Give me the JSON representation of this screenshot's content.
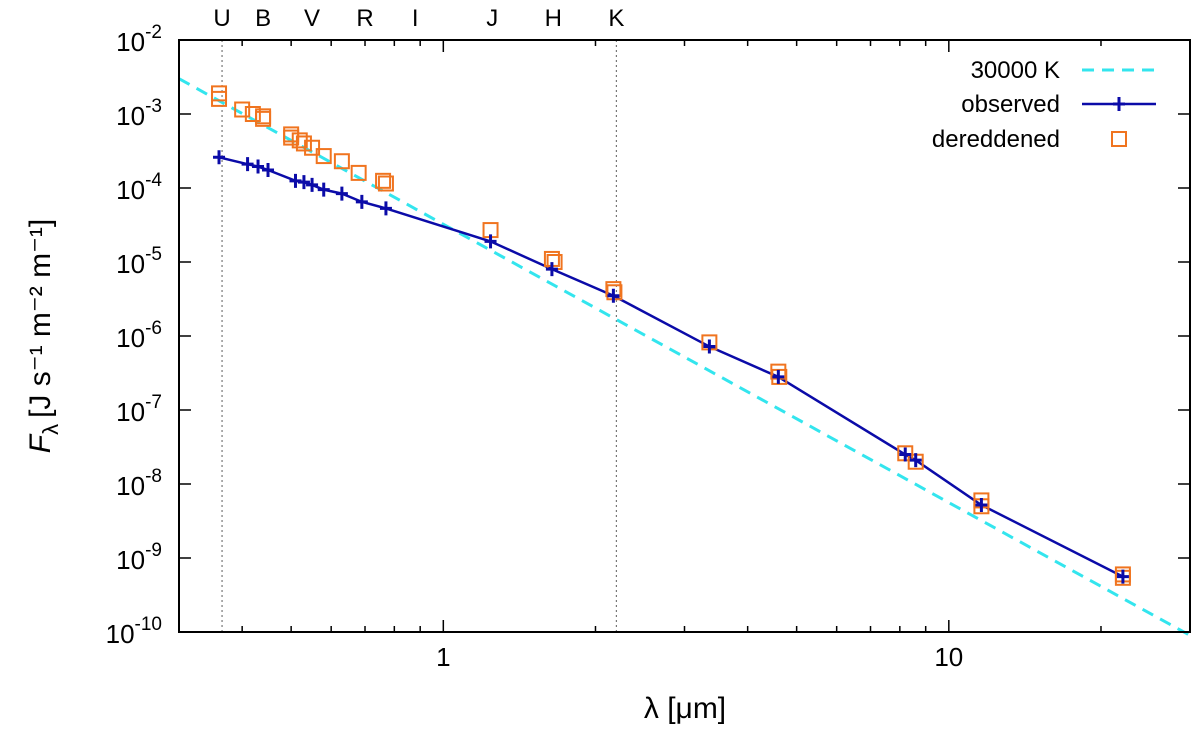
{
  "chart_data": {
    "type": "scatter",
    "xscale": "log",
    "yscale": "log",
    "xlim": [
      0.3,
      30
    ],
    "ylim": [
      1e-10,
      0.01
    ],
    "xlabel": "λ [μm]",
    "ylabel": {
      "var": "F",
      "sub": "λ",
      "units": "[J s⁻¹ m⁻² m⁻¹]"
    },
    "x_ticks": [
      {
        "value": 1,
        "label": "1"
      },
      {
        "value": 10,
        "label": "10"
      }
    ],
    "y_ticks": [
      {
        "value": 1e-10,
        "base": "10",
        "exp": "-10"
      },
      {
        "value": 1e-09,
        "base": "10",
        "exp": "-9"
      },
      {
        "value": 1e-08,
        "base": "10",
        "exp": "-8"
      },
      {
        "value": 1e-07,
        "base": "10",
        "exp": "-7"
      },
      {
        "value": 1e-06,
        "base": "10",
        "exp": "-6"
      },
      {
        "value": 1e-05,
        "base": "10",
        "exp": "-5"
      },
      {
        "value": 0.0001,
        "base": "10",
        "exp": "-4"
      },
      {
        "value": 0.001,
        "base": "10",
        "exp": "-3"
      },
      {
        "value": 0.01,
        "base": "10",
        "exp": "-2"
      }
    ],
    "bands": [
      {
        "label": "U",
        "x": 0.365
      },
      {
        "label": "B",
        "x": 0.44
      },
      {
        "label": "V",
        "x": 0.55
      },
      {
        "label": "R",
        "x": 0.7
      },
      {
        "label": "I",
        "x": 0.88
      },
      {
        "label": "J",
        "x": 1.25
      },
      {
        "label": "H",
        "x": 1.65
      },
      {
        "label": "K",
        "x": 2.2
      }
    ],
    "vlines": [
      0.365,
      2.2
    ],
    "legend": {
      "position": "top-right"
    },
    "series": [
      {
        "name": "30000 K",
        "style": "dashed-line",
        "color": "#33e5ee",
        "x": [
          0.3,
          30
        ],
        "y": [
          0.003,
          9e-11
        ]
      },
      {
        "name": "observed",
        "style": "line-plus",
        "color": "#0b0ba8",
        "x": [
          0.36,
          0.41,
          0.43,
          0.45,
          0.51,
          0.53,
          0.55,
          0.58,
          0.63,
          0.69,
          0.77,
          1.24,
          1.64,
          2.17,
          3.36,
          4.6,
          8.2,
          8.6,
          11.6,
          22.1
        ],
        "y": [
          0.00026,
          0.00021,
          0.000195,
          0.000175,
          0.000125,
          0.00012,
          0.00011,
          9.5e-05,
          8.4e-05,
          6.5e-05,
          5.3e-05,
          1.9e-05,
          8e-06,
          3.5e-06,
          7.2e-07,
          2.8e-07,
          2.5e-08,
          2.1e-08,
          5.2e-09,
          5.6e-10
        ]
      },
      {
        "name": "dereddened",
        "style": "open-square",
        "color": "#f0741f",
        "x": [
          0.36,
          0.36,
          0.4,
          0.42,
          0.44,
          0.44,
          0.5,
          0.5,
          0.52,
          0.53,
          0.55,
          0.58,
          0.63,
          0.68,
          0.76,
          0.77,
          1.24,
          1.64,
          1.66,
          2.17,
          2.18,
          3.36,
          4.6,
          4.62,
          8.2,
          8.6,
          11.6,
          11.6,
          22.1,
          22.1
        ],
        "y": [
          0.0019,
          0.0016,
          0.00115,
          0.001,
          0.00093,
          0.00086,
          0.00053,
          0.00048,
          0.00044,
          0.0004,
          0.00035,
          0.00027,
          0.00023,
          0.00016,
          0.000125,
          0.000115,
          2.7e-05,
          1.1e-05,
          1e-05,
          4.3e-06,
          3.9e-06,
          8.2e-07,
          3.3e-07,
          2.8e-07,
          2.6e-08,
          2e-08,
          6e-09,
          5e-09,
          6e-10,
          5.4e-10
        ]
      }
    ]
  }
}
